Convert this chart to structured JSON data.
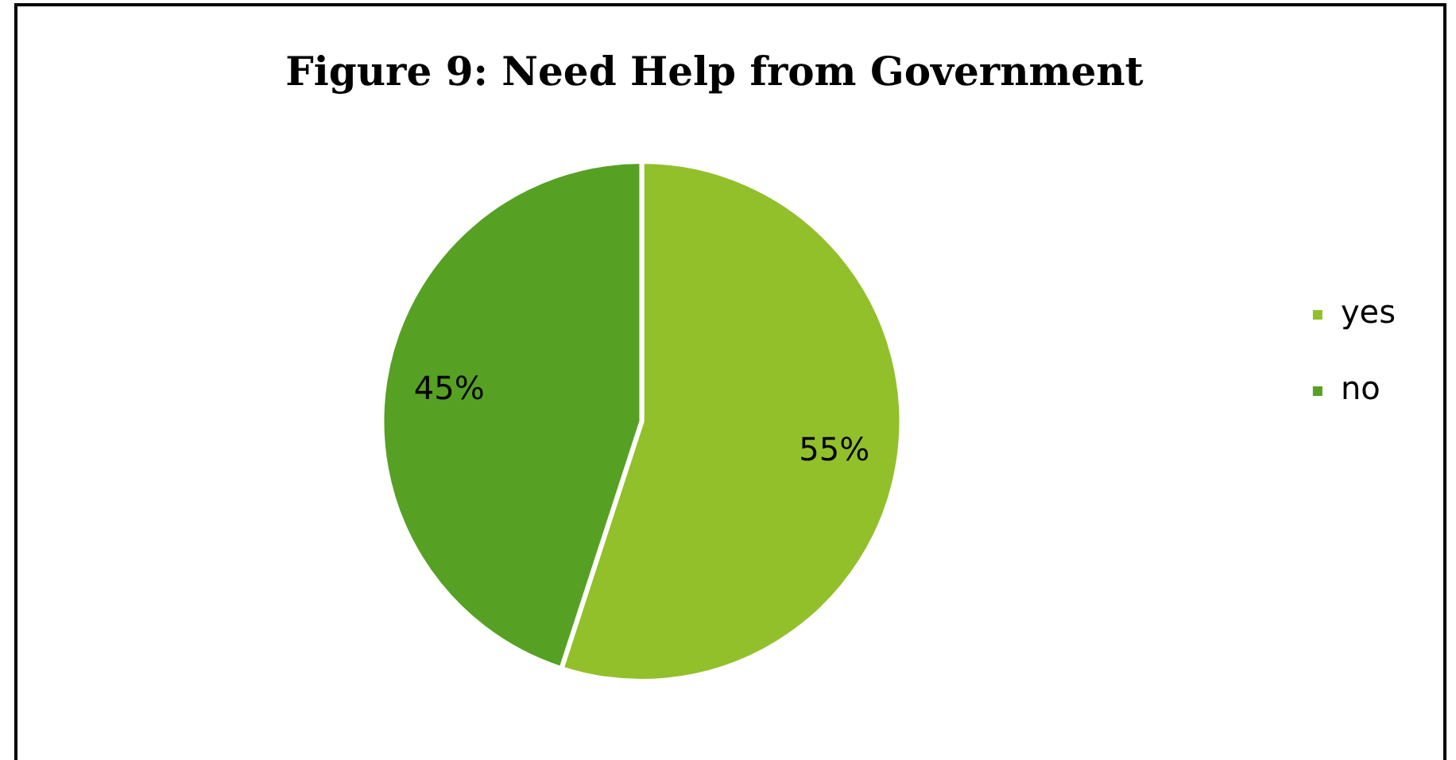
{
  "chart_data": {
    "type": "pie",
    "title": "Figure 9: Need Help from Government",
    "categories": [
      "yes",
      "no"
    ],
    "values": [
      55,
      45
    ],
    "colors": [
      "#92c02a",
      "#56a123"
    ],
    "value_labels": [
      "55%",
      "45%"
    ],
    "legend": "right"
  }
}
